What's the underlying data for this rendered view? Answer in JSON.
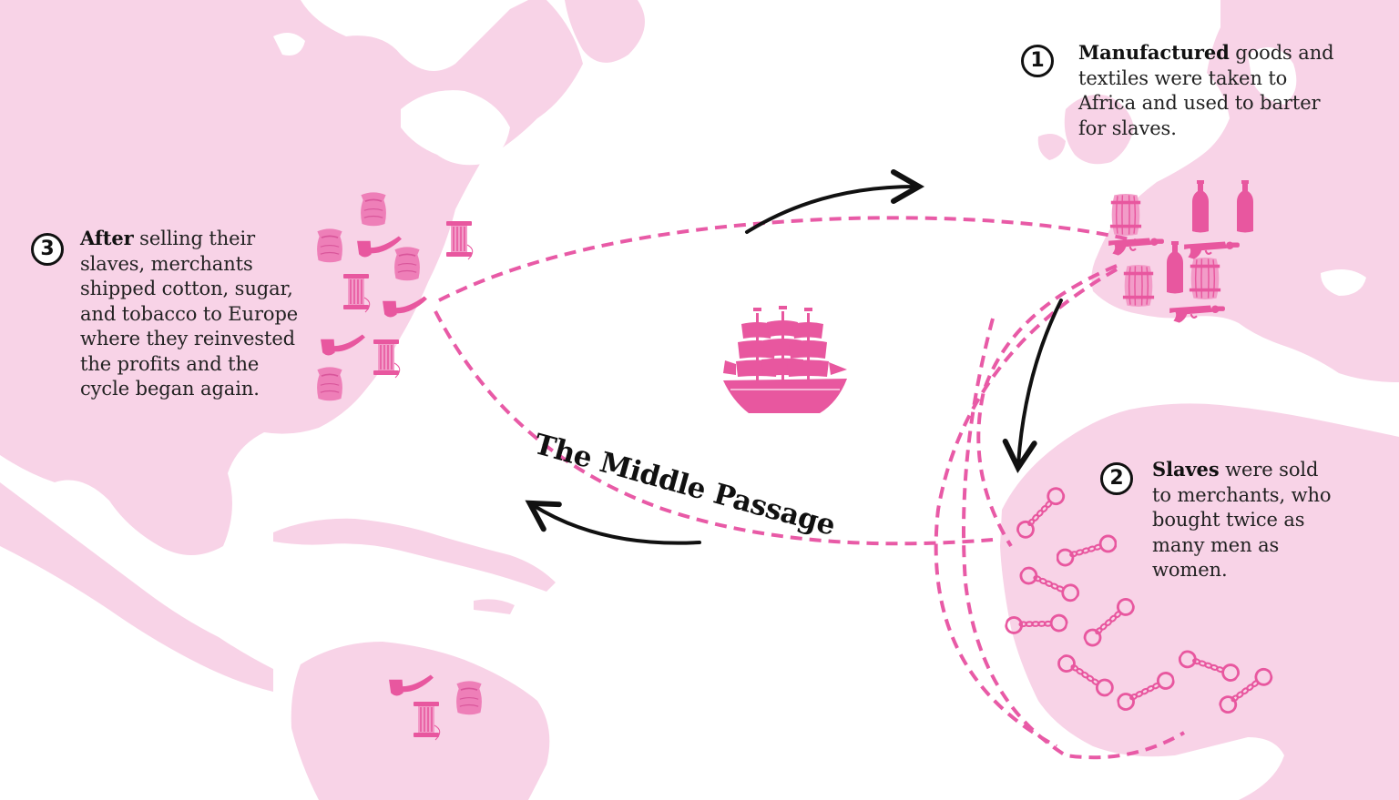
{
  "title": "The Middle Passage",
  "colors": {
    "land": "#f8d3e7",
    "route": "#e85aa6",
    "icon": "#e8579f",
    "arrow": "#111111"
  },
  "steps": [
    {
      "number": "1",
      "bold": "Manufactured",
      "text": " goods and textiles were taken to Africa and used to barter for slaves."
    },
    {
      "number": "2",
      "bold": "Slaves",
      "text": " were sold to merchants, who bought twice as many men as women."
    },
    {
      "number": "3",
      "bold": "After",
      "text": " selling their slaves, merchants shipped cotton, sugar, and tobacco to Europe where they reinvested the profits and the cycle began again."
    }
  ],
  "icons": {
    "europe": [
      "barrel-icon",
      "bottle-icon",
      "pistol-icon"
    ],
    "africa": [
      "shackles-icon"
    ],
    "americas": [
      "sack-icon",
      "pipe-icon",
      "thread-spool-icon"
    ],
    "ship": "ship-icon"
  }
}
